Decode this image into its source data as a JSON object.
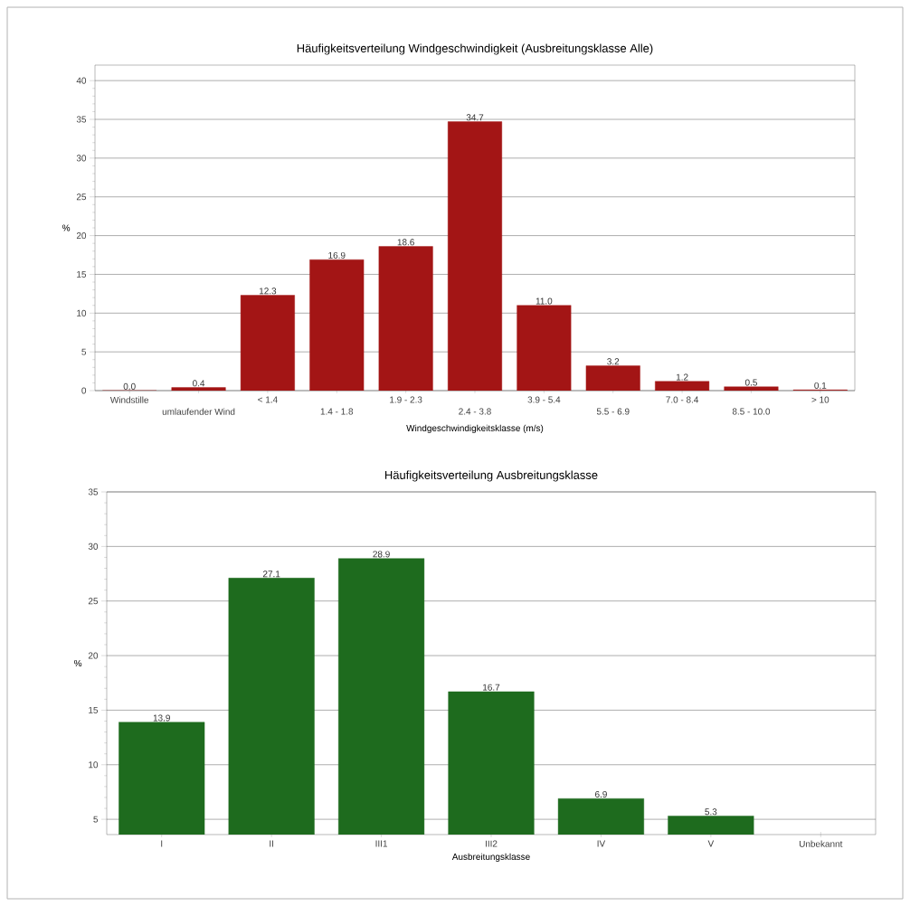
{
  "chart_data": [
    {
      "type": "bar",
      "title": "Häufigkeitsverteilung Windgeschwindigkeit (Ausbreitungsklasse Alle)",
      "xlabel": "Windgeschwindigkeitsklasse (m/s)",
      "ylabel": "%",
      "categories": [
        "Windstille",
        "umlaufender Wind",
        "< 1.4",
        "1.4 - 1.8",
        "1.9 - 2.3",
        "2.4 - 3.8",
        "3.9 - 5.4",
        "5.5 - 6.9",
        "7.0 - 8.4",
        "8.5 - 10.0",
        "> 10"
      ],
      "values": [
        0.0,
        0.4,
        12.3,
        16.9,
        18.6,
        34.7,
        11.0,
        3.2,
        1.2,
        0.5,
        0.1
      ],
      "value_labels": [
        "0.0",
        "0.4",
        "12.3",
        "16.9",
        "18.6",
        "34.7",
        "11.0",
        "3.2",
        "1.2",
        "0.5",
        "0.1"
      ],
      "color": "#a31515",
      "ylim": [
        0,
        42
      ],
      "yticks": [
        0,
        5,
        10,
        15,
        20,
        25,
        30,
        35,
        40
      ],
      "grid": "y"
    },
    {
      "type": "bar",
      "title": "Häufigkeitsverteilung Ausbreitungsklasse",
      "xlabel": "Ausbreitungsklasse",
      "ylabel": "%",
      "categories": [
        "I",
        "II",
        "III1",
        "III2",
        "IV",
        "V",
        "Unbekannt"
      ],
      "values": [
        13.9,
        27.1,
        28.9,
        16.7,
        6.9,
        5.3,
        null
      ],
      "value_labels": [
        "13.9",
        "27.1",
        "28.9",
        "16.7",
        "6.9",
        "5.3",
        null
      ],
      "color": "#1e6b1e",
      "ylim": [
        3.6,
        35
      ],
      "yticks": [
        5,
        10,
        15,
        20,
        25,
        30,
        35
      ],
      "grid": "y"
    }
  ]
}
